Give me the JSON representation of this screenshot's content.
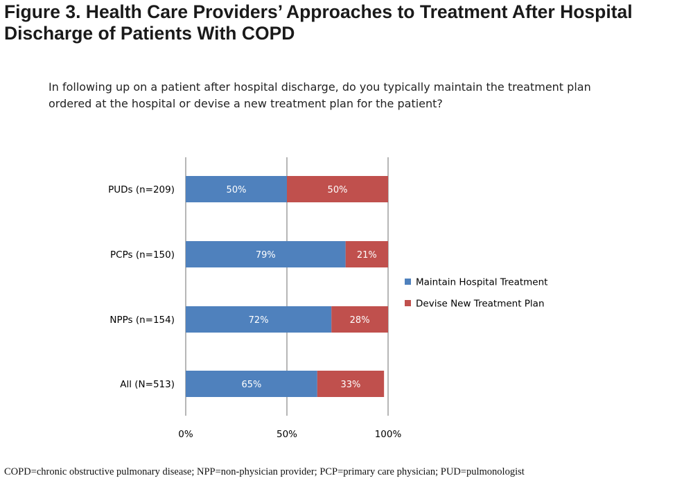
{
  "title": "Figure 3. Health Care Providers’ Approaches to Treatment After Hospital Discharge of Patients With COPD",
  "question": "In following up on a patient after hospital discharge, do you typically maintain the treatment plan ordered at the hospital or devise a new treatment plan for the patient?",
  "footnote": "COPD=chronic obstructive pulmonary disease; NPP=non-physician provider; PCP=primary care physician; PUD=pulmonologist",
  "chart_data": {
    "type": "bar",
    "orientation": "horizontal",
    "stacked": true,
    "categories": [
      "PUDs (n=209)",
      "PCPs (n=150)",
      "NPPs (n=154)",
      "All (N=513)"
    ],
    "series": [
      {
        "name": "Maintain Hospital Treatment",
        "color": "#4F81BD",
        "values": [
          50,
          79,
          72,
          65
        ],
        "labels": [
          "50%",
          "79%",
          "72%",
          "65%"
        ]
      },
      {
        "name": "Devise New Treatment Plan",
        "color": "#C0504D",
        "values": [
          50,
          21,
          28,
          33
        ],
        "labels": [
          "50%",
          "21%",
          "28%",
          "33%"
        ]
      }
    ],
    "xlim": [
      0,
      100
    ],
    "xticks": [
      0,
      50,
      100
    ],
    "xtick_labels": [
      "0%",
      "50%",
      "100%"
    ],
    "grid": true,
    "legend_position": "right",
    "gridline_color": "#868686"
  }
}
